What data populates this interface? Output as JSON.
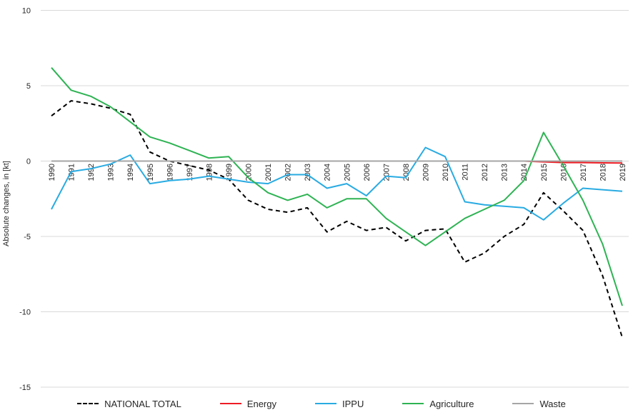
{
  "chart_data": {
    "type": "line",
    "title": "",
    "xlabel": "",
    "ylabel": "Absolute changes, in [kt]",
    "ylim": [
      -15,
      10
    ],
    "y_ticks": [
      10,
      5,
      0,
      -5,
      -10,
      -15
    ],
    "grid": true,
    "gridline_color": "#d9d9d9",
    "background_color": "#ffffff",
    "text_color": "#262626",
    "legend_position": "bottom",
    "categories": [
      1990,
      1991,
      1992,
      1993,
      1994,
      1995,
      1996,
      1997,
      1998,
      1999,
      2000,
      2001,
      2002,
      2003,
      2004,
      2005,
      2006,
      2007,
      2008,
      2009,
      2010,
      2011,
      2012,
      2013,
      2014,
      2015,
      2016,
      2017,
      2018,
      2019
    ],
    "series": [
      {
        "name": "NATIONAL TOTAL",
        "color": "#000000",
        "line_style": "dashed",
        "values": [
          3.0,
          4.0,
          3.8,
          3.5,
          3.1,
          0.6,
          0.0,
          -0.3,
          -0.6,
          -1.2,
          -2.6,
          -3.2,
          -3.4,
          -3.1,
          -4.7,
          -4.0,
          -4.6,
          -4.4,
          -5.3,
          -4.6,
          -4.5,
          -6.7,
          -6.1,
          -5.0,
          -4.2,
          -2.1,
          -3.3,
          -4.6,
          -7.6,
          -11.7
        ]
      },
      {
        "name": "Energy",
        "color": "#ed1c24",
        "line_style": "solid",
        "values": [
          0,
          0,
          0,
          0,
          0,
          0,
          0,
          0,
          0,
          0,
          0,
          0,
          0,
          0,
          0,
          0,
          0,
          0,
          0,
          0,
          0,
          0,
          0,
          0,
          0,
          -0.05,
          -0.1,
          -0.1,
          -0.12,
          -0.13
        ]
      },
      {
        "name": "IPPU",
        "color": "#29abe2",
        "line_style": "solid",
        "values": [
          -3.2,
          -0.7,
          -0.5,
          -0.2,
          0.4,
          -1.5,
          -1.3,
          -1.2,
          -1.0,
          -1.2,
          -1.4,
          -1.5,
          -0.9,
          -0.9,
          -1.8,
          -1.5,
          -2.3,
          -1.0,
          -1.1,
          0.9,
          0.3,
          -2.7,
          -2.9,
          -3.0,
          -3.1,
          -3.9,
          -2.8,
          -1.8,
          -1.9,
          -2.0
        ]
      },
      {
        "name": "Agriculture",
        "color": "#2eb353",
        "line_style": "solid",
        "values": [
          6.2,
          4.7,
          4.3,
          3.6,
          2.6,
          1.6,
          1.2,
          0.7,
          0.2,
          0.3,
          -1.1,
          -2.1,
          -2.6,
          -2.2,
          -3.1,
          -2.5,
          -2.5,
          -3.8,
          -4.7,
          -5.6,
          -4.7,
          -3.8,
          -3.2,
          -2.6,
          -1.3,
          1.9,
          -0.3,
          -2.6,
          -5.5,
          -9.6
        ]
      },
      {
        "name": "Waste",
        "color": "#a6a6a6",
        "line_style": "solid",
        "values": [
          0,
          0,
          0,
          0,
          0,
          0,
          0,
          0,
          0,
          0,
          0,
          0,
          0,
          0,
          0,
          0,
          0,
          0,
          0,
          0,
          0,
          0,
          0,
          0,
          0,
          0,
          0,
          0,
          0,
          0
        ]
      }
    ]
  }
}
